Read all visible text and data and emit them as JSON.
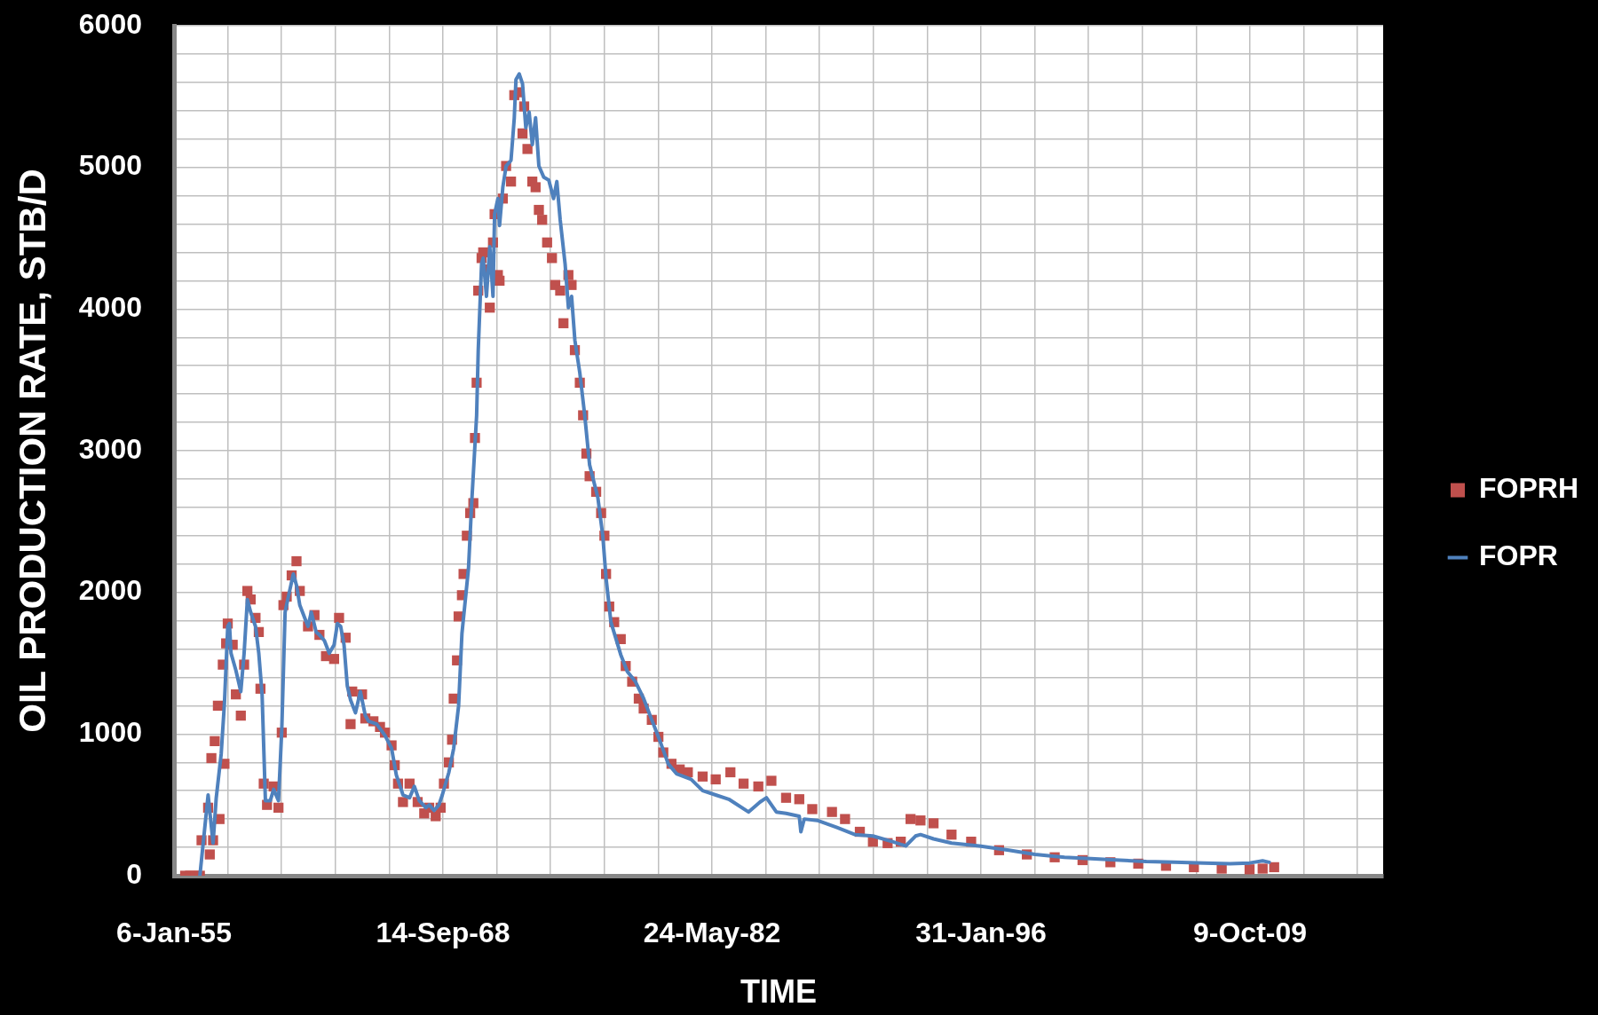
{
  "chart_data": {
    "type": "line",
    "xlabel": "TIME",
    "ylabel": "OIL PRODUCTION RATE, STB/D",
    "xlim": [
      "1955-01-06",
      "2016-07-19"
    ],
    "xticks": [
      {
        "value": "1955-01-06",
        "label": "6-Jan-55"
      },
      {
        "value": "1957-10-02",
        "label": null
      },
      {
        "value": "1960-06-28",
        "label": null
      },
      {
        "value": "1963-03-25",
        "label": null
      },
      {
        "value": "1965-12-19",
        "label": null
      },
      {
        "value": "1968-09-14",
        "label": "14-Sep-68"
      },
      {
        "value": "1971-06-11",
        "label": null
      },
      {
        "value": "1974-03-07",
        "label": null
      },
      {
        "value": "1976-12-01",
        "label": null
      },
      {
        "value": "1979-08-28",
        "label": null
      },
      {
        "value": "1982-05-24",
        "label": "24-May-82"
      },
      {
        "value": "1985-02-17",
        "label": null
      },
      {
        "value": "1987-11-14",
        "label": null
      },
      {
        "value": "1990-08-10",
        "label": null
      },
      {
        "value": "1993-05-06",
        "label": null
      },
      {
        "value": "1996-01-31",
        "label": "31-Jan-96"
      },
      {
        "value": "1998-10-27",
        "label": null
      },
      {
        "value": "2001-07-23",
        "label": null
      },
      {
        "value": "2004-04-18",
        "label": null
      },
      {
        "value": "2007-01-13",
        "label": null
      },
      {
        "value": "2009-10-09",
        "label": "9-Oct-09"
      },
      {
        "value": "2012-07-05",
        "label": null
      },
      {
        "value": "2015-04-01",
        "label": null
      }
    ],
    "ylim": [
      0,
      6000
    ],
    "yticks": [
      0,
      {
        "value": 200,
        "label": null
      },
      {
        "value": 400,
        "label": null
      },
      {
        "value": 600,
        "label": null
      },
      {
        "value": 800,
        "label": null
      },
      1000,
      {
        "value": 1200,
        "label": null
      },
      {
        "value": 1400,
        "label": null
      },
      {
        "value": 1600,
        "label": null
      },
      {
        "value": 1800,
        "label": null
      },
      2000,
      {
        "value": 2200,
        "label": null
      },
      {
        "value": 2400,
        "label": null
      },
      {
        "value": 2600,
        "label": null
      },
      {
        "value": 2800,
        "label": null
      },
      3000,
      {
        "value": 3200,
        "label": null
      },
      {
        "value": 3400,
        "label": null
      },
      {
        "value": 3600,
        "label": null
      },
      {
        "value": 3800,
        "label": null
      },
      4000,
      {
        "value": 4200,
        "label": null
      },
      {
        "value": 4400,
        "label": null
      },
      {
        "value": 4600,
        "label": null
      },
      {
        "value": 4800,
        "label": null
      },
      5000,
      {
        "value": 5200,
        "label": null
      },
      {
        "value": 5400,
        "label": null
      },
      {
        "value": 5600,
        "label": null
      },
      {
        "value": 5800,
        "label": null
      },
      6000
    ],
    "grid": true,
    "legend": "right",
    "series": [
      {
        "name": "FOPRH",
        "type": "scatter",
        "marker": "square",
        "color": "#c0504d",
        "x": [
          "1955-08",
          "1955-11",
          "1956-02",
          "1956-05",
          "1956-06",
          "1956-10",
          "1956-11",
          "1956-12",
          "1957-01",
          "1957-02",
          "1957-04",
          "1957-05",
          "1957-07",
          "1957-08",
          "1957-09",
          "1957-10",
          "1958-01",
          "1958-03",
          "1958-06",
          "1958-08",
          "1958-10",
          "1958-12",
          "1959-03",
          "1959-05",
          "1959-06",
          "1959-08",
          "1959-10",
          "1960-02",
          "1960-05",
          "1960-07",
          "1960-08",
          "1960-10",
          "1961-01",
          "1961-04",
          "1961-06",
          "1961-11",
          "1962-03",
          "1962-06",
          "1962-10",
          "1963-03",
          "1963-06",
          "1963-10",
          "1964-01",
          "1964-02",
          "1964-08",
          "1964-10",
          "1965-03",
          "1965-07",
          "1965-10",
          "1966-02",
          "1966-04",
          "1966-06",
          "1966-09",
          "1967-01",
          "1967-06",
          "1967-10",
          "1968-01",
          "1968-05",
          "1968-08",
          "1968-10",
          "1969-01",
          "1969-03",
          "1969-04",
          "1969-06",
          "1969-07",
          "1969-09",
          "1969-10",
          "1969-12",
          "1970-02",
          "1970-04",
          "1970-05",
          "1970-06",
          "1970-07",
          "1970-09",
          "1970-10",
          "1970-12",
          "1971-02",
          "1971-04",
          "1971-05",
          "1971-07",
          "1971-08",
          "1971-10",
          "1971-12",
          "1972-03",
          "1972-05",
          "1972-08",
          "1972-10",
          "1972-11",
          "1973-01",
          "1973-04",
          "1973-06",
          "1973-08",
          "1973-10",
          "1974-01",
          "1974-04",
          "1974-06",
          "1974-09",
          "1974-11",
          "1975-02",
          "1975-04",
          "1975-06",
          "1975-09",
          "1975-11",
          "1976-01",
          "1976-03",
          "1976-07",
          "1976-10",
          "1976-12",
          "1977-01",
          "1977-03",
          "1977-06",
          "1977-10",
          "1978-01",
          "1978-05",
          "1978-09",
          "1978-12",
          "1979-05",
          "1979-09",
          "1979-12",
          "1980-05",
          "1980-10",
          "1981-03",
          "1981-12",
          "1982-08",
          "1983-05",
          "1984-01",
          "1984-10",
          "1985-06",
          "1986-03",
          "1986-11",
          "1987-07",
          "1988-07",
          "1989-03",
          "1989-12",
          "1990-08",
          "1991-05",
          "1992-01",
          "1992-07",
          "1993-01",
          "1993-09",
          "1994-08",
          "1995-08",
          "1997-01",
          "1998-06",
          "1999-11",
          "2001-04",
          "2002-09",
          "2004-02",
          "2005-07",
          "2006-12",
          "2008-05",
          "2009-10",
          "2010-06",
          "2011-01"
        ],
        "values": [
          0,
          0,
          0,
          0,
          250,
          480,
          150,
          830,
          250,
          950,
          1200,
          400,
          1490,
          790,
          1640,
          1780,
          1630,
          1280,
          1130,
          1490,
          2010,
          1950,
          1820,
          1720,
          1320,
          650,
          500,
          630,
          480,
          1010,
          1910,
          1970,
          2120,
          2220,
          2010,
          1760,
          1840,
          1700,
          1550,
          1530,
          1820,
          1680,
          1070,
          1300,
          1280,
          1110,
          1090,
          1050,
          1010,
          920,
          780,
          650,
          520,
          650,
          520,
          440,
          480,
          420,
          480,
          650,
          800,
          960,
          1250,
          1520,
          1830,
          1980,
          2130,
          2400,
          2560,
          2630,
          3090,
          3480,
          4130,
          4360,
          4400,
          4280,
          4010,
          4470,
          4670,
          4240,
          4200,
          4780,
          5010,
          4900,
          5510,
          5530,
          5240,
          5430,
          5130,
          4900,
          4860,
          4700,
          4630,
          4470,
          4360,
          4170,
          4130,
          3900,
          4240,
          4170,
          3710,
          3480,
          3250,
          2980,
          2820,
          2710,
          2560,
          2400,
          2130,
          1900,
          1790,
          1670,
          1480,
          1370,
          1250,
          1180,
          1100,
          980,
          870,
          790,
          750,
          730,
          700,
          680,
          730,
          650,
          630,
          670,
          550,
          540,
          470,
          450,
          400,
          310,
          240,
          230,
          240,
          400,
          390,
          370,
          290,
          240,
          180,
          150,
          130,
          110,
          95,
          85,
          70,
          60,
          50,
          45,
          50,
          60
        ]
      },
      {
        "name": "FOPR",
        "color": "#4f81bd",
        "x": [
          "1956-05",
          "1956-10",
          "1957-01",
          "1957-03",
          "1957-06",
          "1957-08",
          "1957-10",
          "1957-11",
          "1957-12",
          "1958-03",
          "1958-06",
          "1958-08",
          "1958-10",
          "1958-12",
          "1959-03",
          "1959-05",
          "1959-07",
          "1959-09",
          "1959-12",
          "1960-02",
          "1960-05",
          "1960-07",
          "1960-09",
          "1960-11",
          "1961-02",
          "1961-04",
          "1961-06",
          "1961-09",
          "1961-11",
          "1962-01",
          "1962-04",
          "1962-06",
          "1962-09",
          "1962-12",
          "1963-03",
          "1963-05",
          "1963-07",
          "1963-09",
          "1963-11",
          "1964-01",
          "1964-04",
          "1964-07",
          "1964-10",
          "1964-12",
          "1965-05",
          "1965-10",
          "1966-02",
          "1966-05",
          "1966-09",
          "1967-01",
          "1967-04",
          "1967-07",
          "1967-11",
          "1968-01",
          "1968-04",
          "1968-07",
          "1968-09",
          "1969-01",
          "1969-04",
          "1969-07",
          "1969-09",
          "1970-01",
          "1970-03",
          "1970-06",
          "1970-07",
          "1970-09",
          "1970-10",
          "1970-12",
          "1971-02",
          "1971-04",
          "1971-05",
          "1971-07",
          "1971-08",
          "1971-10",
          "1971-12",
          "1972-03",
          "1972-05",
          "1972-06",
          "1972-08",
          "1972-10",
          "1972-12",
          "1973-02",
          "1973-04",
          "1973-06",
          "1973-08",
          "1973-11",
          "1974-02",
          "1974-05",
          "1974-07",
          "1974-09",
          "1974-12",
          "1975-02",
          "1975-04",
          "1975-06",
          "1975-09",
          "1975-12",
          "1976-03",
          "1976-08",
          "1976-11",
          "1977-01",
          "1977-04",
          "1977-10",
          "1978-02",
          "1978-07",
          "1978-12",
          "1979-05",
          "1979-10",
          "1980-03",
          "1980-08",
          "1981-05",
          "1981-12",
          "1982-08",
          "1983-04",
          "1984-04",
          "1984-11",
          "1985-03",
          "1985-09",
          "1986-03",
          "1986-11",
          "1986-12",
          "1987-02",
          "1987-10",
          "1988-10",
          "1989-09",
          "1990-08",
          "1991-08",
          "1992-04",
          "1992-10",
          "1993-01",
          "1993-09",
          "1994-08",
          "1996-01",
          "1997-07",
          "1998-11",
          "2000-05",
          "2001-09",
          "2003-03",
          "2004-07",
          "2005-12",
          "2007-06",
          "2008-10",
          "2009-10",
          "2010-06",
          "2010-10"
        ],
        "values": [
          0,
          570,
          230,
          550,
          860,
          1220,
          1760,
          1780,
          1570,
          1450,
          1300,
          1570,
          1950,
          1860,
          1760,
          1570,
          1280,
          530,
          530,
          610,
          530,
          1030,
          1860,
          1970,
          2130,
          2050,
          1910,
          1820,
          1760,
          1860,
          1720,
          1700,
          1660,
          1570,
          1630,
          1780,
          1760,
          1630,
          1340,
          1240,
          1150,
          1300,
          1130,
          1090,
          1070,
          990,
          900,
          710,
          570,
          550,
          630,
          530,
          480,
          500,
          460,
          500,
          570,
          730,
          900,
          1200,
          1710,
          2170,
          2630,
          3250,
          3710,
          4320,
          4360,
          4090,
          4440,
          4090,
          4670,
          4780,
          4590,
          4860,
          5010,
          5050,
          5350,
          5620,
          5660,
          5590,
          5280,
          5390,
          5160,
          5350,
          5010,
          4930,
          4910,
          4780,
          4900,
          4630,
          4320,
          4010,
          4090,
          3780,
          3550,
          3250,
          2900,
          2670,
          2400,
          2100,
          1790,
          1560,
          1440,
          1370,
          1250,
          1100,
          950,
          790,
          720,
          680,
          600,
          570,
          540,
          450,
          520,
          550,
          450,
          440,
          420,
          310,
          400,
          390,
          340,
          290,
          280,
          240,
          210,
          280,
          290,
          260,
          230,
          210,
          180,
          150,
          130,
          120,
          110,
          100,
          95,
          90,
          85,
          90,
          105,
          95
        ]
      }
    ]
  }
}
